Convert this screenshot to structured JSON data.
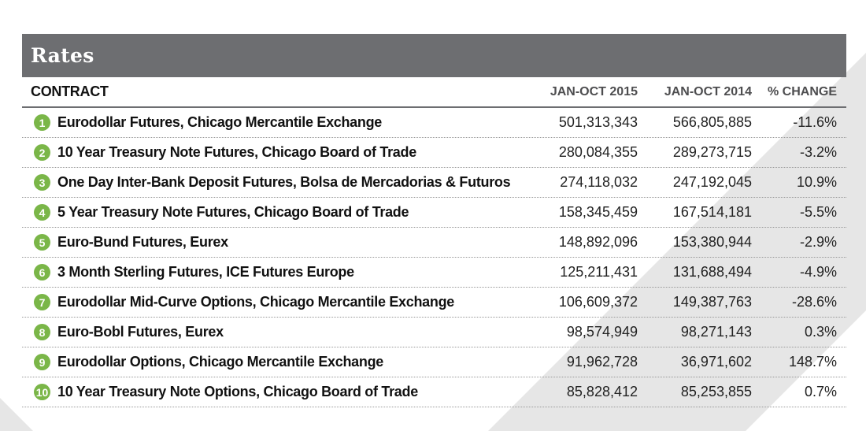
{
  "title": "Rates",
  "colors": {
    "header_bar": "#6d6e71",
    "rank_badge": "#7ab648",
    "background_stripe": "#e6e6e6"
  },
  "columns": {
    "contract": "CONTRACT",
    "jan_oct_2015": "JAN-OCT 2015",
    "jan_oct_2014": "JAN-OCT 2014",
    "change": "% CHANGE"
  },
  "rows": [
    {
      "rank": "1",
      "contract": "Eurodollar Futures, Chicago Mercantile Exchange",
      "v2015": "501,313,343",
      "v2014": "566,805,885",
      "change": "-11.6%"
    },
    {
      "rank": "2",
      "contract": "10 Year Treasury Note Futures, Chicago Board of Trade",
      "v2015": "280,084,355",
      "v2014": "289,273,715",
      "change": "-3.2%"
    },
    {
      "rank": "3",
      "contract": "One Day Inter-Bank Deposit Futures, Bolsa de Mercadorias & Futuros",
      "v2015": "274,118,032",
      "v2014": "247,192,045",
      "change": "10.9%"
    },
    {
      "rank": "4",
      "contract": "5 Year Treasury Note Futures, Chicago Board of Trade",
      "v2015": "158,345,459",
      "v2014": "167,514,181",
      "change": "-5.5%"
    },
    {
      "rank": "5",
      "contract": "Euro-Bund Futures, Eurex",
      "v2015": "148,892,096",
      "v2014": "153,380,944",
      "change": "-2.9%"
    },
    {
      "rank": "6",
      "contract": "3 Month Sterling Futures, ICE Futures Europe",
      "v2015": "125,211,431",
      "v2014": "131,688,494",
      "change": "-4.9%"
    },
    {
      "rank": "7",
      "contract": "Eurodollar Mid-Curve Options, Chicago Mercantile Exchange",
      "v2015": "106,609,372",
      "v2014": "149,387,763",
      "change": "-28.6%"
    },
    {
      "rank": "8",
      "contract": "Euro-Bobl Futures, Eurex",
      "v2015": "98,574,949",
      "v2014": "98,271,143",
      "change": "0.3%"
    },
    {
      "rank": "9",
      "contract": "Eurodollar Options, Chicago Mercantile Exchange",
      "v2015": "91,962,728",
      "v2014": "36,971,602",
      "change": "148.7%"
    },
    {
      "rank": "10",
      "contract": "10 Year Treasury Note Options, Chicago Board of Trade",
      "v2015": "85,828,412",
      "v2014": "85,253,855",
      "change": "0.7%"
    }
  ]
}
